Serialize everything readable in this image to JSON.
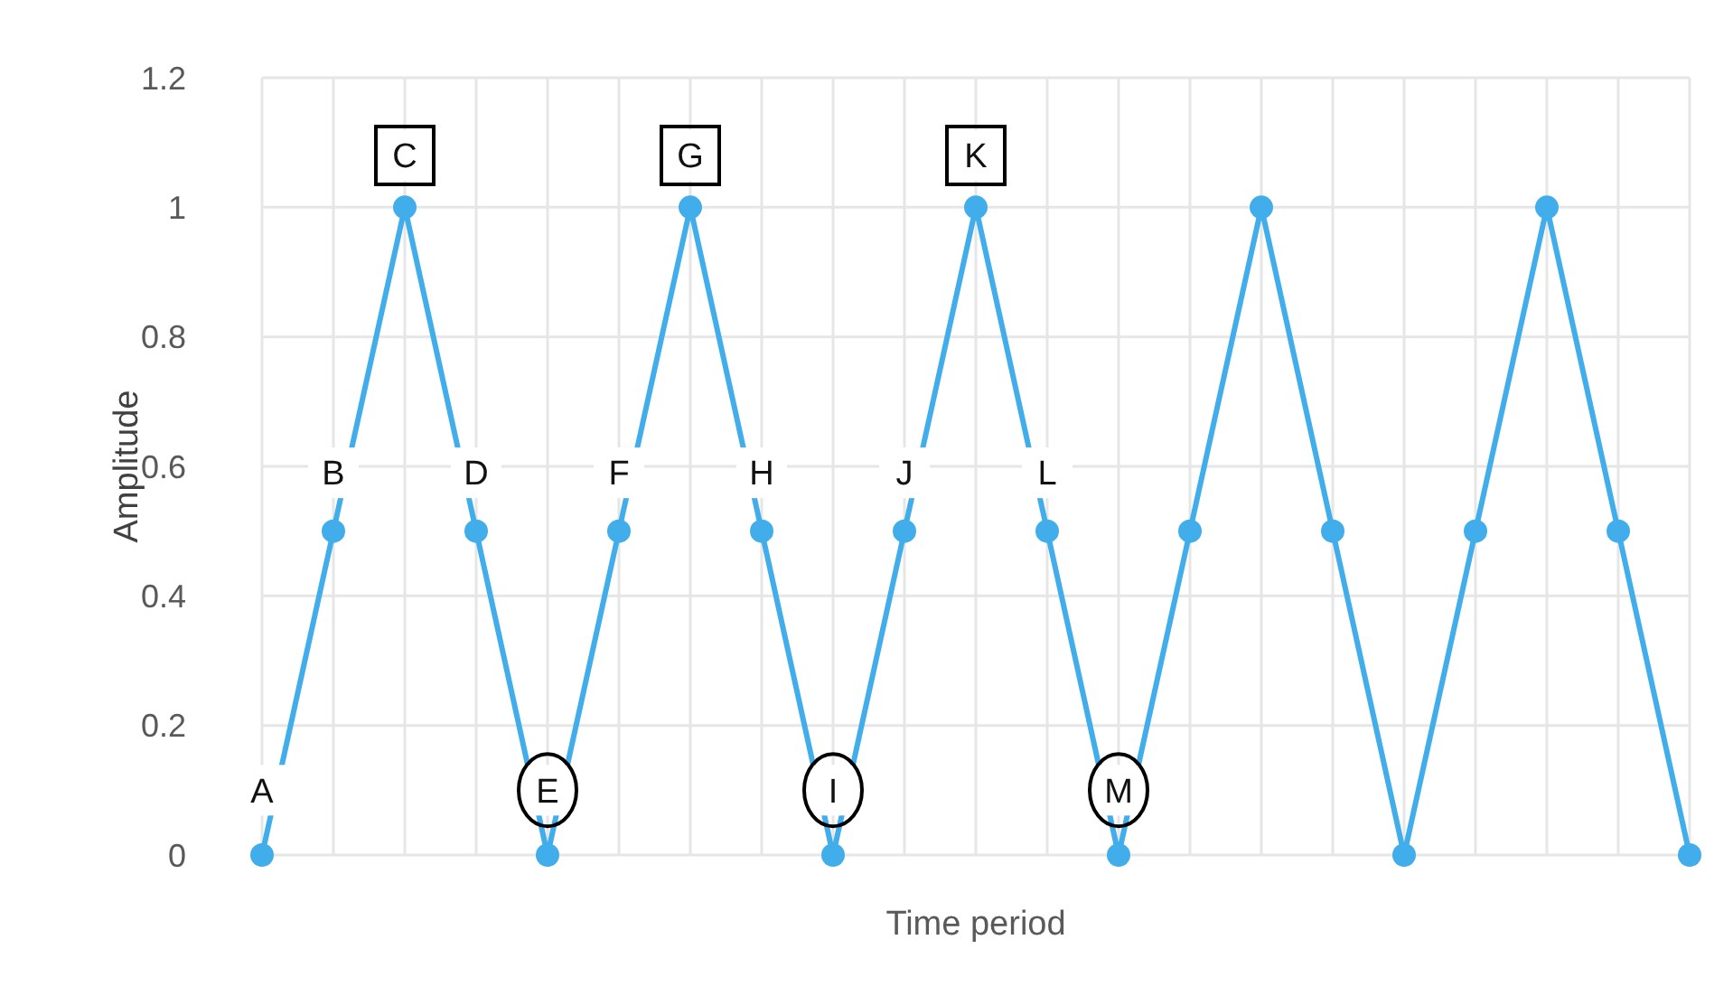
{
  "chart_data": {
    "type": "line",
    "xlabel": "Time period",
    "ylabel": "Amplitude",
    "categories": [
      null,
      null,
      null,
      null,
      null,
      null,
      null,
      null,
      null,
      null,
      null,
      null,
      null,
      null,
      null,
      null,
      null,
      null,
      null,
      null,
      null
    ],
    "values": [
      0,
      0.5,
      1,
      0.5,
      0,
      0.5,
      1,
      0.5,
      0,
      0.5,
      1,
      0.5,
      0,
      0.5,
      1,
      0.5,
      0,
      0.5,
      1,
      0.5,
      0
    ],
    "color": "#41adea",
    "marker": "circle",
    "line_style": "solid",
    "grid": true,
    "ylim": [
      0,
      1.2
    ],
    "yticks": [
      0,
      0.2,
      0.4,
      0.6,
      0.8,
      1,
      1.2
    ],
    "annotations": [
      {
        "text": "A",
        "y": 0.1
      },
      {
        "text": "B",
        "y": 0.59
      },
      {
        "text": "C",
        "y": 1.08
      },
      {
        "text": "D",
        "y": 0.59
      },
      {
        "text": "E",
        "y": 0.1
      },
      {
        "text": "F",
        "y": 0.59
      },
      {
        "text": "G",
        "y": 1.08
      },
      {
        "text": "H",
        "y": 0.59
      },
      {
        "text": "I",
        "y": 0.1
      },
      {
        "text": "J",
        "y": 0.59
      },
      {
        "text": "K",
        "y": 1.08
      },
      {
        "text": "L",
        "y": 0.59
      },
      {
        "text": "M",
        "y": 0.1
      }
    ]
  }
}
